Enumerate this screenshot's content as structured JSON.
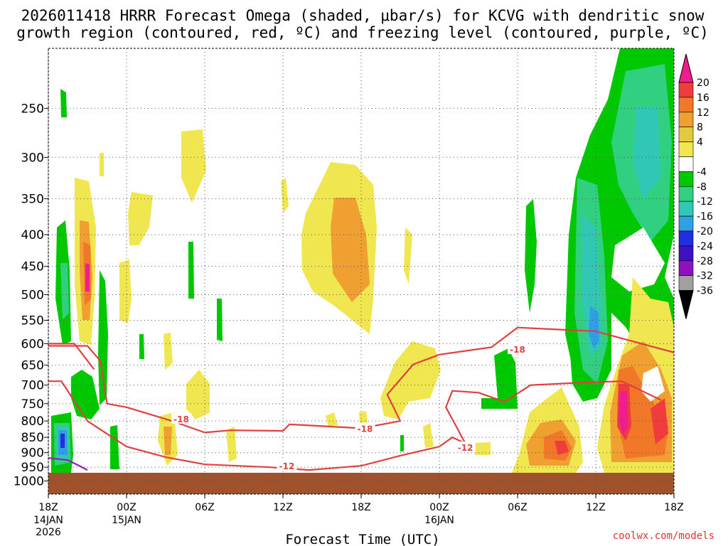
{
  "chart_data": {
    "type": "heatmap",
    "title_line1": "2026011418 HRRR Forecast Omega (shaded, μbar/s) for KCVG with dendritic snow",
    "title_line2": "growth region (contoured, red, ºC) and freezing level (contoured, purple, ºC)",
    "xlabel": "Forecast Time (UTC)",
    "ylabel": "",
    "credit": "coolwx.com/models",
    "x_ticks": [
      {
        "hour": 0,
        "label": "18Z",
        "date": "14JAN",
        "year": "2026"
      },
      {
        "hour": 6,
        "label": "00Z",
        "date": "15JAN",
        "year": ""
      },
      {
        "hour": 12,
        "label": "06Z",
        "date": "",
        "year": ""
      },
      {
        "hour": 18,
        "label": "12Z",
        "date": "",
        "year": ""
      },
      {
        "hour": 24,
        "label": "18Z",
        "date": "",
        "year": ""
      },
      {
        "hour": 30,
        "label": "00Z",
        "date": "16JAN",
        "year": ""
      },
      {
        "hour": 36,
        "label": "06Z",
        "date": "",
        "year": ""
      },
      {
        "hour": 42,
        "label": "12Z",
        "date": "",
        "year": ""
      },
      {
        "hour": 48,
        "label": "18Z",
        "date": "",
        "year": ""
      }
    ],
    "x_range_hours": [
      0,
      48
    ],
    "y_axis": "pressure (hPa), log scale, inverted",
    "y_range": [
      200,
      1050
    ],
    "y_ticks": [
      250,
      300,
      350,
      400,
      450,
      500,
      550,
      600,
      650,
      700,
      750,
      800,
      850,
      900,
      950,
      1000
    ],
    "grid": true,
    "colorbar": {
      "labels": [
        "20",
        "16",
        "12",
        "8",
        "4",
        "-4",
        "-8",
        "-12",
        "-16",
        "-20",
        "-24",
        "-28",
        "-32",
        "-36"
      ],
      "colors": [
        "#f01e8c",
        "#f03c3c",
        "#f07828",
        "#f0a030",
        "#e6c840",
        "#f0e650",
        "#ffffff",
        "#00c800",
        "#30d080",
        "#30c8b4",
        "#30a0e6",
        "#2030e0",
        "#4010c0",
        "#9010c0",
        "#a0a0a0",
        "#000000"
      ]
    },
    "contours": [
      {
        "name": "-18",
        "color": "#e04040",
        "kind": "dendritic",
        "points": [
          [
            0,
            605
          ],
          [
            3,
            605
          ],
          [
            4,
            640
          ],
          [
            4.5,
            750
          ],
          [
            6,
            760
          ],
          [
            9.5,
            800
          ],
          [
            12,
            835
          ],
          [
            14,
            828
          ],
          [
            18,
            830
          ],
          [
            18.5,
            810
          ],
          [
            24,
            822
          ],
          [
            27,
            800
          ],
          [
            26,
            725
          ],
          [
            28,
            648
          ],
          [
            30,
            625
          ],
          [
            34,
            608
          ],
          [
            36,
            565
          ],
          [
            42,
            573
          ],
          [
            48,
            620
          ]
        ]
      },
      {
        "name": "-18",
        "color": "#e04040",
        "kind": "dendritic",
        "points": [
          [
            0,
            690
          ],
          [
            1,
            690
          ],
          [
            3,
            800
          ],
          [
            6,
            880
          ],
          [
            9,
            915
          ],
          [
            12,
            940
          ],
          [
            17,
            950
          ],
          [
            20,
            960
          ],
          [
            24,
            945
          ],
          [
            27,
            910
          ],
          [
            30,
            880
          ],
          [
            31,
            850
          ],
          [
            32,
            870
          ],
          [
            30.5,
            760
          ],
          [
            31,
            715
          ],
          [
            33,
            720
          ],
          [
            35,
            745
          ],
          [
            37,
            700
          ],
          [
            40,
            695
          ],
          [
            44,
            690
          ],
          [
            47,
            740
          ]
        ]
      },
      {
        "name": "-12",
        "color": "#e04040",
        "kind": "dendritic",
        "points": [
          [
            0,
            600
          ],
          [
            2,
            600
          ],
          [
            3.5,
            660
          ]
        ]
      },
      {
        "name": "freezing",
        "color": "#9020c0",
        "kind": "freezing",
        "points": [
          [
            0,
            918
          ],
          [
            1.5,
            925
          ],
          [
            3,
            960
          ]
        ]
      }
    ],
    "contour_labels": [
      {
        "text": "-18",
        "hour": 10.2,
        "p": 793
      },
      {
        "text": "-18",
        "hour": 24.3,
        "p": 822
      },
      {
        "text": "-18",
        "hour": 36,
        "p": 612
      },
      {
        "text": "-12",
        "hour": 18.3,
        "p": 945
      },
      {
        "text": "-12",
        "hour": 32,
        "p": 882
      }
    ],
    "shaded_features": [
      {
        "desc": "green upward-motion band",
        "value": -6,
        "hour_range": [
          44,
          48
        ],
        "p_range": [
          200,
          760
        ]
      },
      {
        "desc": "cyan core",
        "value": -12,
        "hour_range": [
          45,
          47.5
        ],
        "p_range": [
          230,
          320
        ]
      },
      {
        "desc": "cyan/blue column",
        "value": -14,
        "hour_range": [
          41,
          43.5
        ],
        "p_range": [
          330,
          740
        ]
      },
      {
        "desc": "yellow/orange/red low-level maximum",
        "value": 16,
        "hour_range": [
          43,
          48
        ],
        "p_range": [
          500,
          960
        ]
      },
      {
        "desc": "orange/red maximum",
        "value": 14,
        "hour_range": [
          37,
          40
        ],
        "p_range": [
          780,
          955
        ]
      },
      {
        "desc": "yellow/orange mid-level area",
        "value": 7,
        "hour_range": [
          20.5,
          25.5
        ],
        "p_range": [
          305,
          590
        ]
      },
      {
        "desc": "green/blue low-level column",
        "value": -14,
        "hour_range": [
          0.5,
          2.5
        ],
        "p_range": [
          790,
          955
        ]
      }
    ]
  }
}
